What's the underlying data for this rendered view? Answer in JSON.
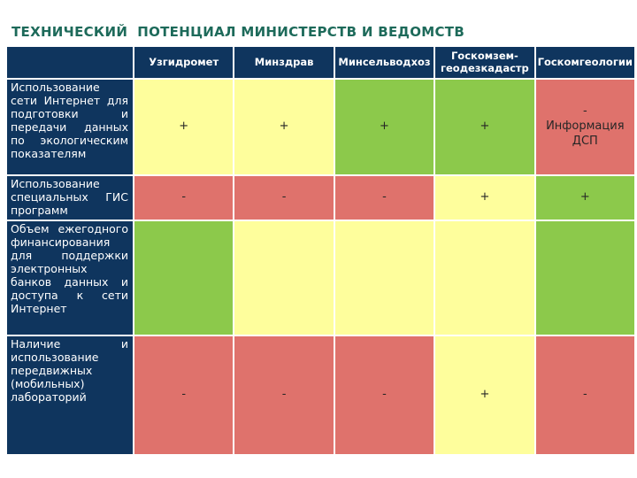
{
  "title": "ТЕХНИЧЕСКИЙ  ПОТЕНЦИАЛ МИНИСТЕРСТВ И ВЕДОМСТВ",
  "colors": {
    "title_teal": "#1d6a5a",
    "header_navy": "#0f355e",
    "status_green": "#8cc94b",
    "status_yellow": "#fefe9c",
    "status_red": "#df726c"
  },
  "table": {
    "corner_label": "",
    "columns": [
      "Узгидромет",
      "Минздрав",
      "Минсельводхоз",
      "Госкомзем-геодезкадастр",
      "Госкомгеологии"
    ],
    "rows": [
      {
        "label": "Использование сети Интернет для подготовки и передачи данных по экологическим показателям",
        "cells": [
          {
            "value": "+",
            "color": "yellow"
          },
          {
            "value": "+",
            "color": "yellow"
          },
          {
            "value": "+",
            "color": "green"
          },
          {
            "value": "+",
            "color": "green"
          },
          {
            "value": "-\nИнформация ДСП",
            "color": "red"
          }
        ]
      },
      {
        "label": "Использование специальных ГИС программ",
        "cells": [
          {
            "value": "-",
            "color": "red"
          },
          {
            "value": "-",
            "color": "red"
          },
          {
            "value": "-",
            "color": "red"
          },
          {
            "value": "+",
            "color": "yellow"
          },
          {
            "value": "+",
            "color": "green"
          }
        ]
      },
      {
        "label": "Объем ежегодного финансирования для поддержки электронных банков данных и доступа к сети Интернет",
        "cells": [
          {
            "value": "",
            "color": "green"
          },
          {
            "value": "",
            "color": "yellow"
          },
          {
            "value": "",
            "color": "yellow"
          },
          {
            "value": "",
            "color": "yellow"
          },
          {
            "value": "",
            "color": "green"
          }
        ]
      },
      {
        "label": "Наличие и использование передвижных (мобильных) лабораторий",
        "cells": [
          {
            "value": "-",
            "color": "red"
          },
          {
            "value": "-",
            "color": "red"
          },
          {
            "value": "-",
            "color": "red"
          },
          {
            "value": "+",
            "color": "yellow"
          },
          {
            "value": "-",
            "color": "red"
          }
        ]
      }
    ]
  }
}
